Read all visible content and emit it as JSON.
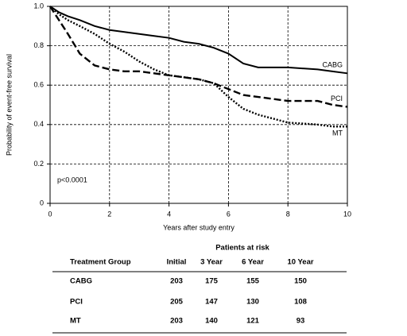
{
  "chart_data": {
    "type": "line",
    "y_label": "Probability of event-free survival",
    "x_label": "Years after study entry",
    "annotation": "p<0.0001",
    "x": [
      0,
      0.3,
      0.6,
      1,
      1.5,
      2,
      2.5,
      3,
      3.5,
      4,
      4.5,
      5,
      5.5,
      6,
      6.5,
      7,
      8,
      9,
      9.5,
      10
    ],
    "series": [
      {
        "name": "CABG",
        "color": "#000000",
        "dash": "solid",
        "values": [
          1,
          0.97,
          0.95,
          0.93,
          0.9,
          0.88,
          0.87,
          0.86,
          0.85,
          0.84,
          0.82,
          0.81,
          0.79,
          0.76,
          0.71,
          0.69,
          0.69,
          0.68,
          0.67,
          0.66
        ]
      },
      {
        "name": "PCI",
        "color": "#000000",
        "dash": "dashed",
        "values": [
          1,
          0.93,
          0.86,
          0.76,
          0.7,
          0.68,
          0.67,
          0.67,
          0.66,
          0.65,
          0.64,
          0.63,
          0.61,
          0.58,
          0.55,
          0.54,
          0.52,
          0.52,
          0.5,
          0.49
        ]
      },
      {
        "name": "MT",
        "color": "#000000",
        "dash": "dotted",
        "values": [
          1,
          0.96,
          0.93,
          0.9,
          0.86,
          0.81,
          0.77,
          0.72,
          0.68,
          0.65,
          0.64,
          0.63,
          0.61,
          0.54,
          0.48,
          0.45,
          0.41,
          0.4,
          0.39,
          0.39
        ]
      }
    ],
    "xlim": [
      0,
      10
    ],
    "xticks": [
      0,
      2,
      4,
      6,
      8,
      10
    ],
    "ylim": [
      0,
      1
    ],
    "yticks": [
      0,
      0.2,
      0.4,
      0.6,
      0.8,
      {
        "value": 1,
        "label": "1.0"
      }
    ],
    "grid": true
  },
  "table": {
    "title": "Patients at risk",
    "header": [
      "Treatment Group",
      "Initial",
      "3 Year",
      "6 Year",
      "10 Year"
    ],
    "rows": [
      [
        "CABG",
        203,
        175,
        155,
        150
      ],
      [
        "PCI",
        205,
        147,
        130,
        108
      ],
      [
        "MT",
        203,
        140,
        121,
        93
      ]
    ]
  }
}
